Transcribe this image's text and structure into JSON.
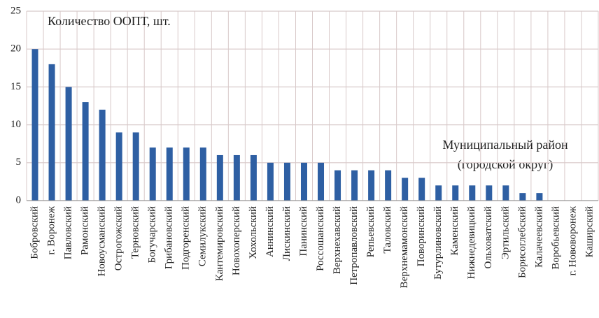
{
  "chart_data": {
    "type": "bar",
    "annotations": [
      "Количество ООПТ, шт.",
      "Муниципальный район",
      "(городской округ)"
    ],
    "categories": [
      "Бобровский",
      "г. Воронеж",
      "Павловский",
      "Рамонский",
      "Новоусманский",
      "Острогожский",
      "Терновский",
      "Богучарский",
      "Грибановский",
      "Подгоренский",
      "Семилукский",
      "Кантемировский",
      "Новохоперский",
      "Хохольский",
      "Аннинский",
      "Лискинский",
      "Панинский",
      "Россошанский",
      "Верхнехавский",
      "Петропавловский",
      "Репьевский",
      "Таловский",
      "Верхнемамонский",
      "Поворинский",
      "Бутурлиновский",
      "Каменский",
      "Нижнедевицкий",
      "Ольховатский",
      "Эртильский",
      "Борисоглебский",
      "Калачеевский",
      "Воробьевский",
      "г. Нововоронеж",
      "Каширский"
    ],
    "values": [
      20,
      18,
      15,
      13,
      12,
      9,
      9,
      7,
      7,
      7,
      7,
      6,
      6,
      6,
      5,
      5,
      5,
      5,
      4,
      4,
      4,
      4,
      3,
      3,
      2,
      2,
      2,
      2,
      2,
      1,
      1,
      0,
      0,
      0
    ],
    "color": "#2e5fa3",
    "ylim": [
      0,
      25
    ],
    "yticks": [
      0,
      5,
      10,
      15,
      20,
      25
    ],
    "grid": true
  }
}
